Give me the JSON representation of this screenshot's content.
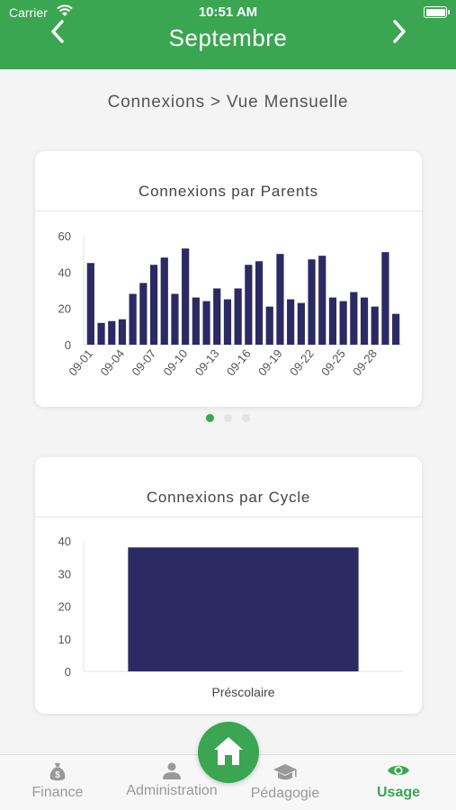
{
  "status_bar": {
    "carrier": "Carrier",
    "time": "10:51 AM"
  },
  "header": {
    "month": "Septembre",
    "prev_icon": "chevron-left-icon",
    "next_icon": "chevron-right-icon"
  },
  "page": {
    "breadcrumb": "Connexions > Vue Mensuelle"
  },
  "pager": {
    "pages": 3,
    "active": 0
  },
  "charts": {
    "parents": {
      "title": "Connexions par Parents"
    },
    "cycle": {
      "title": "Connexions par Cycle"
    }
  },
  "colors": {
    "primary": "#3aa651",
    "bar": "#2b2a63",
    "inactive": "#999999"
  },
  "chart_data": [
    {
      "type": "bar",
      "title": "Connexions par Parents",
      "categories": [
        "09-01",
        "09-02",
        "09-03",
        "09-04",
        "09-05",
        "09-06",
        "09-07",
        "09-08",
        "09-09",
        "09-10",
        "09-11",
        "09-12",
        "09-13",
        "09-14",
        "09-15",
        "09-16",
        "09-17",
        "09-18",
        "09-19",
        "09-20",
        "09-21",
        "09-22",
        "09-23",
        "09-24",
        "09-25",
        "09-26",
        "09-27",
        "09-28",
        "09-29",
        "09-30"
      ],
      "tick_labels": [
        "09-01",
        "09-04",
        "09-07",
        "09-10",
        "09-13",
        "09-16",
        "09-19",
        "09-22",
        "09-25",
        "09-28"
      ],
      "values": [
        45,
        12,
        13,
        14,
        28,
        34,
        44,
        48,
        28,
        53,
        26,
        24,
        31,
        25,
        31,
        44,
        46,
        21,
        50,
        25,
        23,
        47,
        49,
        26,
        24,
        29,
        26,
        21,
        51,
        17
      ],
      "ylim": [
        0,
        60
      ],
      "yticks": [
        0,
        20,
        40,
        60
      ],
      "grid": false
    },
    {
      "type": "bar",
      "title": "Connexions par Cycle",
      "categories": [
        "Préscolaire"
      ],
      "values": [
        38
      ],
      "ylim": [
        0,
        40
      ],
      "yticks": [
        0,
        10,
        20,
        30,
        40
      ],
      "grid": false
    }
  ],
  "tabbar": {
    "home_icon": "home-icon",
    "items": [
      {
        "label": "Finance",
        "icon": "money-bag-icon"
      },
      {
        "label": "Administration",
        "icon": "user-icon"
      },
      {
        "label": "Pédagogie",
        "icon": "graduation-cap-icon"
      },
      {
        "label": "Usage",
        "icon": "eye-icon",
        "active": true
      }
    ]
  }
}
